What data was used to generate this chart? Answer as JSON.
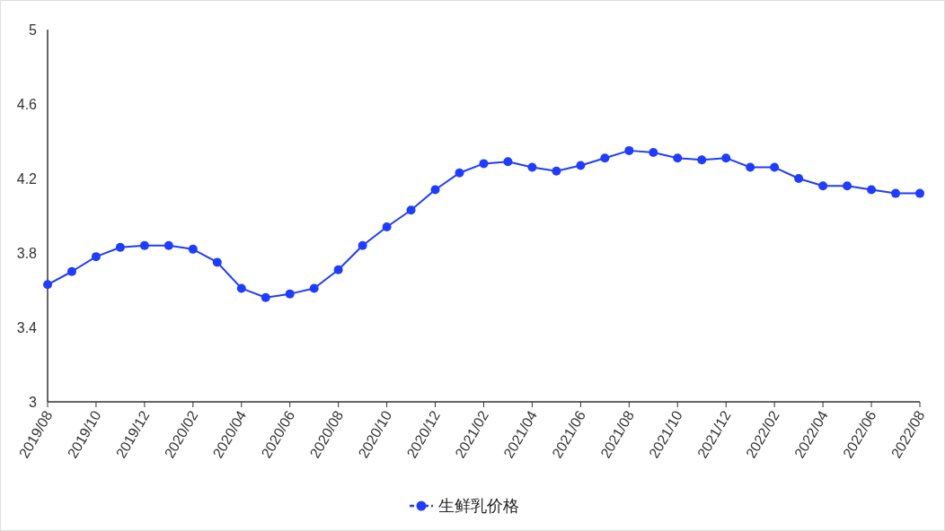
{
  "chart_data": {
    "type": "line",
    "categories": [
      "2019/08",
      null,
      "2019/10",
      null,
      "2019/12",
      null,
      "2020/02",
      null,
      "2020/04",
      null,
      "2020/06",
      null,
      "2020/08",
      null,
      "2020/10",
      null,
      "2020/12",
      null,
      "2021/02",
      null,
      "2021/04",
      null,
      "2021/06",
      null,
      "2021/08",
      null,
      "2021/10",
      null,
      "2021/12",
      null,
      "2022/02",
      null,
      "2022/04",
      null,
      "2022/06",
      null,
      "2022/08"
    ],
    "series": [
      {
        "name": "生鲜乳价格",
        "color": "#1f3cff",
        "values": [
          3.63,
          3.7,
          3.78,
          3.83,
          3.84,
          3.84,
          3.82,
          3.75,
          3.61,
          3.56,
          3.58,
          3.61,
          3.71,
          3.84,
          3.94,
          4.03,
          4.14,
          4.23,
          4.28,
          4.29,
          4.26,
          4.24,
          4.27,
          4.31,
          4.35,
          4.34,
          4.31,
          4.3,
          4.31,
          4.26,
          4.26,
          4.2,
          4.16,
          4.16,
          4.14,
          4.12,
          4.12
        ]
      }
    ],
    "ylim": [
      3,
      5
    ],
    "yticks": [
      3,
      3.4,
      3.8,
      4.2,
      4.6,
      5
    ],
    "marker": "circle",
    "line_style": "solid",
    "legend": "bottom",
    "grid": false
  }
}
